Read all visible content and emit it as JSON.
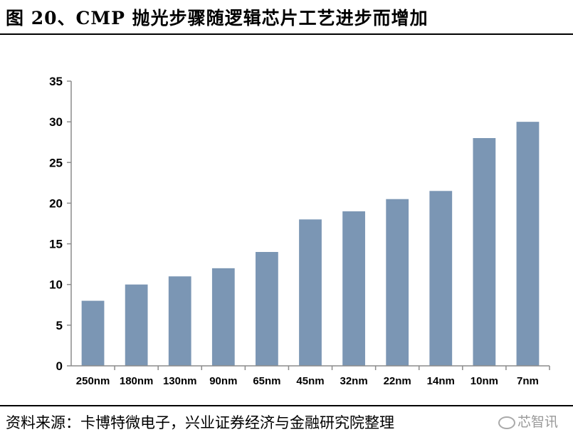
{
  "title": "图 20、CMP 抛光步骤随逻辑芯片工艺进步而增加",
  "source": "资料来源：卡博特微电子，兴业证券经济与金融研究院整理",
  "watermark": "芯智讯",
  "chart_data": {
    "type": "bar",
    "categories": [
      "250nm",
      "180nm",
      "130nm",
      "90nm",
      "65nm",
      "45nm",
      "32nm",
      "22nm",
      "14nm",
      "10nm",
      "7nm"
    ],
    "values": [
      8,
      10,
      11,
      12,
      14,
      18,
      19,
      20.5,
      21.5,
      28,
      30
    ],
    "ylim": [
      0,
      35
    ],
    "yticks": [
      "0",
      "5",
      "10",
      "15",
      "20",
      "25",
      "30",
      "35"
    ],
    "bar_color": "#7b96b4",
    "axis_color": "#8c8c8c",
    "grid": false,
    "legend": "none"
  }
}
